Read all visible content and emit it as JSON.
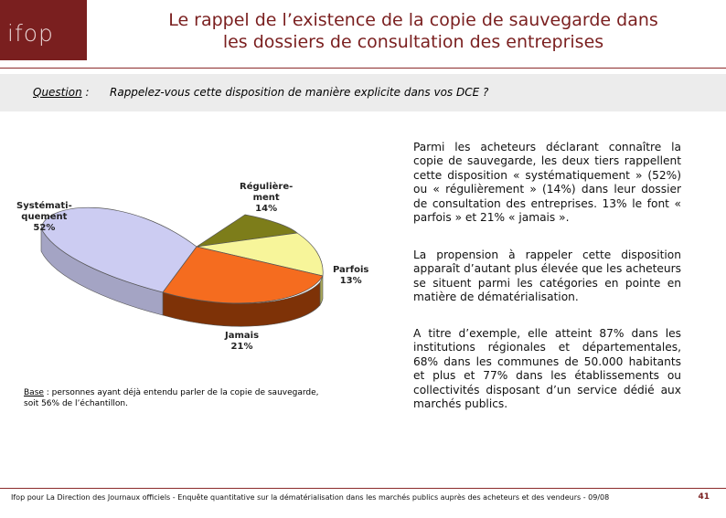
{
  "logo_text": "ifop",
  "title_line1": "Le rappel de l’existence de la copie de sauvegarde dans",
  "title_line2": "les dossiers de consultation des entreprises",
  "question_label": "Question",
  "question_colon": " :",
  "question_text": "Rappelez-vous cette disposition de manière explicite dans vos DCE ?",
  "chart_data": {
    "type": "pie",
    "categories": [
      "Systématiquement",
      "Régulièrement",
      "Parfois",
      "Jamais"
    ],
    "values": [
      52,
      14,
      13,
      21
    ],
    "colors": [
      "#ccccf2",
      "#7d7d1a",
      "#f7f59a",
      "#f56c1f"
    ],
    "labels": {
      "systematiquement": [
        "Systémati-",
        "quement",
        "52%"
      ],
      "regulierement": [
        "Régulière-",
        "ment",
        "14%"
      ],
      "parfois": [
        "Parfois",
        "13%"
      ],
      "jamais": [
        "Jamais",
        "21%"
      ]
    }
  },
  "base_label": "Base",
  "base_text_1": " : personnes ayant déjà entendu parler de la copie de sauvegarde,",
  "base_text_2": "soit 56% de l’échantillon.",
  "paragraph_1": "Parmi les acheteurs déclarant connaître la copie de sauvegarde, les deux tiers rappellent cette disposition « systématiquement » (52%) ou « régulièrement » (14%) dans leur dossier de consultation des entreprises. 13% le font « parfois » et 21% « jamais ».",
  "paragraph_2": "La propension à rappeler cette disposition apparaît d’autant plus élevée que les acheteurs se situent parmi les catégories en pointe en matière de dématérialisation.",
  "paragraph_3": "A titre d’exemple, elle atteint 87% dans les institutions régionales et départementales, 68% dans les communes de 50.000 habitants et plus et 77% dans les établissements ou collectivités disposant d’un service dédié aux marchés publics.",
  "footer_text": "Ifop pour La Direction des Journaux officiels - Enquête quantitative sur la dématérialisation dans les marchés publics auprès des acheteurs et des vendeurs - 09/08",
  "page_number": "41"
}
